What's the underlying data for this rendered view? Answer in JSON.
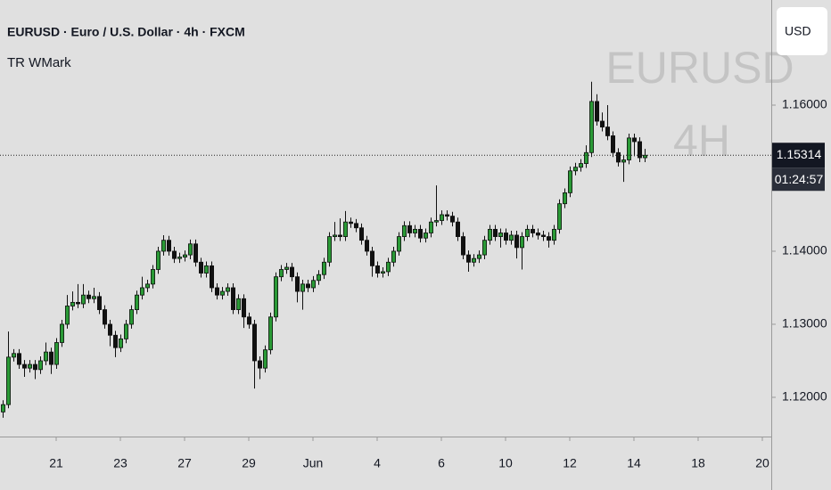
{
  "chart_data": {
    "type": "candlestick",
    "title": "EURUSD · Euro / U.S. Dollar · 4h · FXCM",
    "subtitle": "TR WMark",
    "watermark_symbol": "EURUSD",
    "watermark_interval": "4H",
    "currency": "USD",
    "last_price": 1.15314,
    "countdown": "01:24:57",
    "up_color": "#2a9a36",
    "down_color": "#111111",
    "ylim": [
      1.11463,
      1.17439
    ],
    "yticks": [
      {
        "value": 1.12,
        "label": "1.12000"
      },
      {
        "value": 1.13,
        "label": "1.13000"
      },
      {
        "value": 1.14,
        "label": "1.14000"
      },
      {
        "value": 1.16,
        "label": "1.16000"
      }
    ],
    "xlim": [
      -0.5,
      143.67
    ],
    "xticks": [
      {
        "value": 10,
        "label": "21"
      },
      {
        "value": 22,
        "label": "23"
      },
      {
        "value": 34,
        "label": "27"
      },
      {
        "value": 46,
        "label": "29"
      },
      {
        "value": 58,
        "label": "Jun"
      },
      {
        "value": 70,
        "label": "4"
      },
      {
        "value": 82,
        "label": "6"
      },
      {
        "value": 94,
        "label": "10"
      },
      {
        "value": 106,
        "label": "12"
      },
      {
        "value": 118,
        "label": "14"
      },
      {
        "value": 130,
        "label": "18"
      },
      {
        "value": 142,
        "label": "20"
      }
    ],
    "open": [
      1.118,
      1.119,
      1.1255,
      1.126,
      1.1245,
      1.124,
      1.1245,
      1.1238,
      1.125,
      1.1262,
      1.1245,
      1.1275,
      1.13,
      1.1325,
      1.133,
      1.1328,
      1.134,
      1.1335,
      1.1338,
      1.132,
      1.13,
      1.1285,
      1.1268,
      1.128,
      1.13,
      1.132,
      1.134,
      1.135,
      1.1355,
      1.1375,
      1.14,
      1.1415,
      1.14,
      1.139,
      1.1392,
      1.1395,
      1.141,
      1.1385,
      1.137,
      1.138,
      1.135,
      1.134,
      1.1345,
      1.135,
      1.132,
      1.1335,
      1.131,
      1.13,
      1.125,
      1.124,
      1.1265,
      1.131,
      1.1365,
      1.1375,
      1.1378,
      1.1365,
      1.1345,
      1.1355,
      1.135,
      1.136,
      1.1368,
      1.1385,
      1.142,
      1.1422,
      1.142,
      1.144,
      1.1438,
      1.1432,
      1.1415,
      1.14,
      1.138,
      1.137,
      1.1372,
      1.1385,
      1.14,
      1.142,
      1.1435,
      1.1425,
      1.143,
      1.1418,
      1.1425,
      1.144,
      1.1442,
      1.145,
      1.1448,
      1.144,
      1.142,
      1.1395,
      1.1385,
      1.139,
      1.1395,
      1.1415,
      1.143,
      1.142,
      1.1425,
      1.1415,
      1.1422,
      1.1405,
      1.142,
      1.143,
      1.1425,
      1.1422,
      1.142,
      1.1415,
      1.143,
      1.1465,
      1.148,
      1.151,
      1.1515,
      1.152,
      1.1535,
      1.1605,
      1.1578,
      1.157,
      1.1558,
      1.1535,
      1.1522,
      1.1525,
      1.1555,
      1.155,
      1.1528
    ],
    "high": [
      1.1196,
      1.129,
      1.1266,
      1.1266,
      1.1251,
      1.1251,
      1.1251,
      1.1256,
      1.1275,
      1.1268,
      1.1281,
      1.1306,
      1.134,
      1.1345,
      1.1355,
      1.1355,
      1.1346,
      1.135,
      1.1344,
      1.1326,
      1.1306,
      1.1291,
      1.1286,
      1.1306,
      1.1326,
      1.1346,
      1.1365,
      1.1361,
      1.1381,
      1.1406,
      1.1422,
      1.1421,
      1.1406,
      1.1398,
      1.1401,
      1.1416,
      1.1416,
      1.1391,
      1.1386,
      1.1386,
      1.1356,
      1.1351,
      1.1356,
      1.1356,
      1.1341,
      1.1341,
      1.1316,
      1.1306,
      1.1256,
      1.1271,
      1.1316,
      1.1371,
      1.1381,
      1.1384,
      1.1384,
      1.1371,
      1.1361,
      1.1361,
      1.1366,
      1.1374,
      1.1391,
      1.1426,
      1.144,
      1.1445,
      1.1455,
      1.1446,
      1.1444,
      1.1438,
      1.1421,
      1.1406,
      1.1386,
      1.1378,
      1.1391,
      1.1406,
      1.1426,
      1.1441,
      1.1441,
      1.1436,
      1.1436,
      1.1431,
      1.1446,
      1.149,
      1.1456,
      1.1456,
      1.1454,
      1.1446,
      1.1426,
      1.1401,
      1.1396,
      1.1401,
      1.1421,
      1.1436,
      1.1436,
      1.1431,
      1.1431,
      1.1428,
      1.1428,
      1.1426,
      1.1436,
      1.1436,
      1.1431,
      1.1428,
      1.1426,
      1.1436,
      1.1471,
      1.1486,
      1.1516,
      1.1521,
      1.1526,
      1.1545,
      1.1632,
      1.1615,
      1.159,
      1.16,
      1.1564,
      1.1541,
      1.1531,
      1.1561,
      1.1561,
      1.1556,
      1.154
    ],
    "low": [
      1.1172,
      1.1185,
      1.1249,
      1.1239,
      1.1228,
      1.1234,
      1.1225,
      1.1232,
      1.1244,
      1.1232,
      1.1239,
      1.1269,
      1.1294,
      1.1319,
      1.1322,
      1.1322,
      1.1329,
      1.1329,
      1.1314,
      1.1294,
      1.127,
      1.1255,
      1.1262,
      1.1274,
      1.1294,
      1.1314,
      1.1334,
      1.1344,
      1.1349,
      1.1369,
      1.1394,
      1.1394,
      1.1384,
      1.1384,
      1.1386,
      1.1389,
      1.1379,
      1.1364,
      1.1364,
      1.1344,
      1.1334,
      1.1334,
      1.1339,
      1.1314,
      1.1314,
      1.1295,
      1.1294,
      1.1212,
      1.1225,
      1.1234,
      1.1259,
      1.1304,
      1.1359,
      1.1369,
      1.1359,
      1.133,
      1.132,
      1.1344,
      1.1344,
      1.1354,
      1.1362,
      1.1379,
      1.1414,
      1.1414,
      1.1414,
      1.1432,
      1.1426,
      1.1409,
      1.1394,
      1.1365,
      1.1364,
      1.1364,
      1.1366,
      1.1379,
      1.1394,
      1.1414,
      1.1419,
      1.1419,
      1.1412,
      1.1412,
      1.1419,
      1.1434,
      1.1436,
      1.1442,
      1.1434,
      1.1414,
      1.1389,
      1.1372,
      1.1379,
      1.1384,
      1.1389,
      1.1409,
      1.1414,
      1.1405,
      1.1409,
      1.1409,
      1.139,
      1.1375,
      1.1414,
      1.1419,
      1.1416,
      1.1414,
      1.1405,
      1.1409,
      1.1424,
      1.1459,
      1.1474,
      1.1504,
      1.1509,
      1.1514,
      1.1529,
      1.1572,
      1.1564,
      1.1552,
      1.1529,
      1.1516,
      1.1495,
      1.1519,
      1.153,
      1.1522,
      1.1522
    ],
    "close": [
      1.119,
      1.1255,
      1.126,
      1.1245,
      1.124,
      1.1245,
      1.1238,
      1.125,
      1.1262,
      1.1245,
      1.1275,
      1.13,
      1.1325,
      1.133,
      1.1328,
      1.134,
      1.1335,
      1.1338,
      1.132,
      1.13,
      1.1285,
      1.1268,
      1.128,
      1.13,
      1.132,
      1.134,
      1.135,
      1.1355,
      1.1375,
      1.14,
      1.1415,
      1.14,
      1.139,
      1.1392,
      1.1395,
      1.141,
      1.1385,
      1.137,
      1.138,
      1.135,
      1.134,
      1.1345,
      1.135,
      1.132,
      1.1335,
      1.131,
      1.13,
      1.125,
      1.124,
      1.1265,
      1.131,
      1.1365,
      1.1375,
      1.1378,
      1.1365,
      1.1345,
      1.1355,
      1.135,
      1.136,
      1.1368,
      1.1385,
      1.142,
      1.1422,
      1.142,
      1.144,
      1.1438,
      1.1432,
      1.1415,
      1.14,
      1.138,
      1.137,
      1.1372,
      1.1385,
      1.14,
      1.142,
      1.1435,
      1.1425,
      1.143,
      1.1418,
      1.1425,
      1.144,
      1.1442,
      1.145,
      1.1448,
      1.144,
      1.142,
      1.1395,
      1.1385,
      1.139,
      1.1395,
      1.1415,
      1.143,
      1.142,
      1.1425,
      1.1415,
      1.1422,
      1.1405,
      1.142,
      1.143,
      1.1425,
      1.1422,
      1.142,
      1.1415,
      1.143,
      1.1465,
      1.148,
      1.151,
      1.1515,
      1.152,
      1.1535,
      1.1605,
      1.1578,
      1.157,
      1.1558,
      1.1535,
      1.1522,
      1.1525,
      1.1555,
      1.155,
      1.1528,
      1.15314
    ]
  }
}
